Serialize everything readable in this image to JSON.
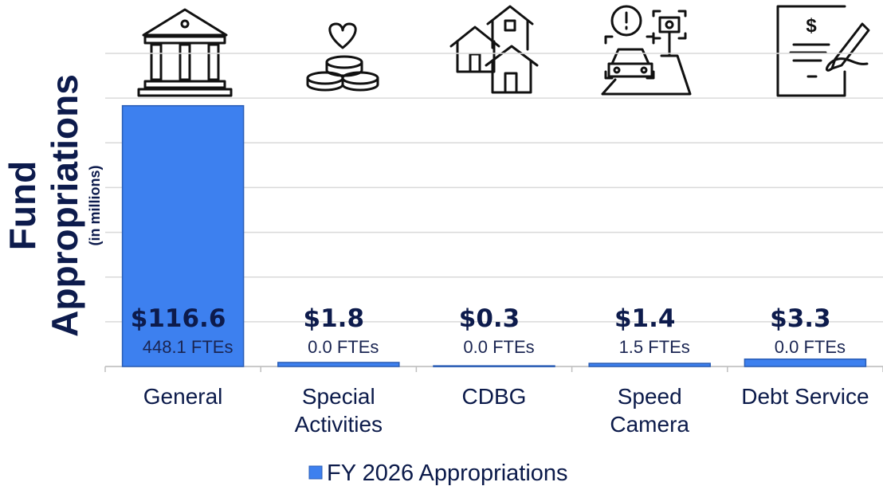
{
  "chart_data": {
    "type": "bar",
    "categories": [
      "General",
      "Special Activities",
      "CDBG",
      "Speed Camera",
      "Debt Service"
    ],
    "series": [
      {
        "name": "FY 2026 Appropriations",
        "color": "#3d80ef",
        "values": [
          116.6,
          1.8,
          0.3,
          1.4,
          3.3
        ],
        "value_labels": [
          "$116.6",
          "$1.8",
          "$0.3",
          "$1.4",
          "$3.3"
        ]
      }
    ],
    "fte_labels": [
      "448.1 FTEs",
      "0.0 FTEs",
      "0.0 FTEs",
      "1.5 FTEs",
      "0.0 FTEs"
    ],
    "ylabel_lines": [
      "Fund",
      "Appropriations"
    ],
    "ylabel_note": "(in millions)",
    "ylim": [
      0,
      140
    ],
    "yticks": [
      0,
      20,
      40,
      60,
      80,
      100,
      120,
      140
    ],
    "grid": true,
    "legend": "bottom"
  }
}
